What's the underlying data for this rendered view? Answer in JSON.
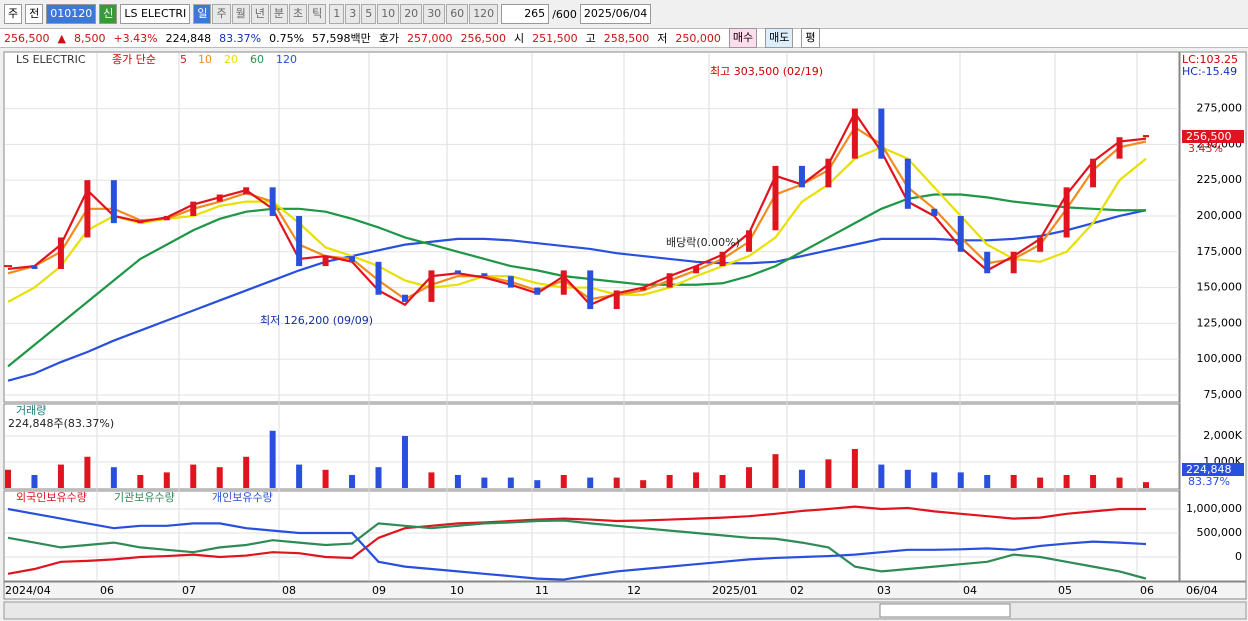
{
  "toolbar": {
    "period": "주",
    "prev": "전",
    "code": "010120",
    "new": "신",
    "name": "LS ELECTRI",
    "intervals": [
      "일",
      "주",
      "월",
      "년",
      "분",
      "초",
      "틱"
    ],
    "counts": [
      "1",
      "3",
      "5",
      "10",
      "20",
      "30",
      "60",
      "120"
    ],
    "count": "265",
    "max": "/600",
    "date": "2025/06/04"
  },
  "quote": {
    "price": "256,500",
    "arrow": "▲",
    "change": "8,500",
    "rate": "+3.43%",
    "volume": "224,848",
    "vol_ratio": "83.37%",
    "turnover": "0.75%",
    "amount": "57,598백만",
    "ask_label": "호가",
    "ask": "257,000",
    "bid": "256,500",
    "open_label": "시",
    "open": "251,500",
    "high_label": "고",
    "high": "258,500",
    "low_label": "저",
    "low": "250,000",
    "buy": "매수",
    "sell": "매도",
    "avg": "평"
  },
  "chart_data": [
    {
      "type": "candlestick",
      "title": "LS ELECTRIC",
      "legend_prefix": "종가 단순",
      "close": [
        165000,
        163000,
        185000,
        225000,
        195000,
        197000,
        200000,
        210000,
        215000,
        220000,
        200000,
        165000,
        172000,
        168000,
        145000,
        140000,
        162000,
        160000,
        158000,
        150000,
        145000,
        162000,
        135000,
        148000,
        150000,
        160000,
        165000,
        175000,
        190000,
        235000,
        220000,
        240000,
        275000,
        240000,
        205000,
        200000,
        175000,
        160000,
        175000,
        185000,
        220000,
        240000,
        255000,
        256500
      ],
      "up_color": "#e0141e",
      "down_color": "#2850dc",
      "series": [
        {
          "name": "5",
          "color": "#e0141e",
          "values": [
            163000,
            165000,
            180000,
            218000,
            200000,
            196000,
            199000,
            208000,
            213000,
            218000,
            205000,
            170000,
            172000,
            168000,
            148000,
            138000,
            158000,
            160000,
            157000,
            152000,
            146000,
            158000,
            138000,
            146000,
            150000,
            158000,
            165000,
            173000,
            188000,
            228000,
            222000,
            236000,
            272000,
            245000,
            210000,
            200000,
            178000,
            162000,
            172000,
            184000,
            215000,
            238000,
            252000,
            254000
          ]
        },
        {
          "name": "10",
          "color": "#f08c1e",
          "values": [
            160000,
            165000,
            175000,
            205000,
            205000,
            197000,
            198000,
            205000,
            210000,
            216000,
            210000,
            180000,
            172000,
            170000,
            155000,
            142000,
            152000,
            158000,
            158000,
            154000,
            148000,
            155000,
            142000,
            145000,
            148000,
            155000,
            162000,
            170000,
            182000,
            215000,
            222000,
            232000,
            262000,
            250000,
            220000,
            205000,
            185000,
            167000,
            170000,
            180000,
            205000,
            232000,
            248000,
            252000
          ]
        },
        {
          "name": "20",
          "color": "#e8e000",
          "values": [
            140000,
            150000,
            165000,
            190000,
            200000,
            195000,
            198000,
            200000,
            207000,
            210000,
            210000,
            195000,
            178000,
            172000,
            165000,
            155000,
            150000,
            152000,
            158000,
            158000,
            153000,
            150000,
            150000,
            145000,
            145000,
            150000,
            158000,
            165000,
            172000,
            185000,
            210000,
            222000,
            240000,
            248000,
            240000,
            220000,
            200000,
            180000,
            170000,
            168000,
            175000,
            195000,
            225000,
            240000
          ]
        },
        {
          "name": "60",
          "color": "#1e9646",
          "values": [
            95000,
            110000,
            125000,
            140000,
            155000,
            170000,
            180000,
            190000,
            198000,
            203000,
            205000,
            205000,
            203000,
            198000,
            192000,
            185000,
            180000,
            175000,
            170000,
            165000,
            162000,
            158000,
            156000,
            154000,
            152000,
            152000,
            152000,
            153000,
            158000,
            165000,
            175000,
            185000,
            195000,
            205000,
            212000,
            215000,
            215000,
            213000,
            210000,
            208000,
            206000,
            205000,
            204000,
            204000
          ]
        },
        {
          "name": "120",
          "color": "#2850dc",
          "values": [
            85000,
            90000,
            98000,
            105000,
            113000,
            120000,
            127000,
            134000,
            141000,
            148000,
            155000,
            162000,
            168000,
            172000,
            176000,
            180000,
            182000,
            184000,
            184000,
            183000,
            181000,
            179000,
            177000,
            174000,
            172000,
            170000,
            168000,
            167000,
            167000,
            168000,
            172000,
            176000,
            180000,
            184000,
            184000,
            184000,
            183000,
            183000,
            184000,
            186000,
            190000,
            195000,
            200000,
            204000
          ]
        }
      ],
      "ylim": [
        70100,
        314500
      ],
      "yticks": [
        {
          "value": 275000,
          "label": "275,000"
        },
        {
          "value": 250000,
          "label": "250,000"
        },
        {
          "value": 225000,
          "label": "225,000"
        },
        {
          "value": 200000,
          "label": "200,000"
        },
        {
          "value": 175000,
          "label": "175,000"
        },
        {
          "value": 150000,
          "label": "150,000"
        },
        {
          "value": 125000,
          "label": "125,000"
        },
        {
          "value": 100000,
          "label": "100,000"
        },
        {
          "value": 75000,
          "label": "75,000"
        }
      ],
      "annotations": {
        "high": "최고 303,500 (02/19)",
        "low": "최저 126,200 (09/09)",
        "dividend": "배당락(0.00%)",
        "lc": "LC:103.25",
        "hc": "HC:-15.49",
        "last": "256,500",
        "last_rate": "3.43%"
      },
      "x_labels": [
        "2024/04",
        "06",
        "07",
        "08",
        "09",
        "10",
        "11",
        "12",
        "2025/01",
        "02",
        "03",
        "04",
        "05",
        "06",
        "06/04"
      ]
    },
    {
      "type": "bar",
      "title": "거래량",
      "subtitle": "224,848주(83.37%)",
      "values": [
        700000,
        500000,
        900000,
        1200000,
        800000,
        500000,
        600000,
        900000,
        800000,
        1200000,
        2200000,
        900000,
        700000,
        500000,
        800000,
        2000000,
        600000,
        500000,
        400000,
        400000,
        300000,
        500000,
        400000,
        400000,
        300000,
        500000,
        600000,
        500000,
        800000,
        1300000,
        700000,
        1100000,
        1500000,
        900000,
        700000,
        600000,
        600000,
        500000,
        500000,
        400000,
        500000,
        500000,
        400000,
        224848
      ],
      "ylim": [
        0,
        3190000
      ],
      "yticks": [
        {
          "value": 2000000,
          "label": "2,000K"
        },
        {
          "value": 1000000,
          "label": "1,000K"
        }
      ],
      "last_label": "224,848",
      "last_rate": "83.37%"
    },
    {
      "type": "line",
      "series": [
        {
          "name": "외국인보유수량",
          "color": "#e0141e",
          "values": [
            -350000,
            -250000,
            -100000,
            -80000,
            -50000,
            0,
            20000,
            50000,
            0,
            30000,
            100000,
            80000,
            0,
            -20000,
            400000,
            600000,
            650000,
            700000,
            720000,
            750000,
            780000,
            800000,
            780000,
            750000,
            760000,
            780000,
            800000,
            820000,
            850000,
            900000,
            960000,
            1000000,
            1050000,
            1000000,
            1020000,
            950000,
            900000,
            850000,
            800000,
            820000,
            900000,
            950000,
            1000000,
            1000000
          ]
        },
        {
          "name": "기관보유수량",
          "color": "#2e8b57",
          "values": [
            400000,
            300000,
            200000,
            250000,
            300000,
            200000,
            150000,
            100000,
            200000,
            250000,
            350000,
            300000,
            250000,
            280000,
            700000,
            650000,
            600000,
            650000,
            700000,
            720000,
            750000,
            760000,
            700000,
            650000,
            600000,
            550000,
            500000,
            450000,
            400000,
            380000,
            300000,
            200000,
            -200000,
            -300000,
            -250000,
            -200000,
            -150000,
            -100000,
            50000,
            0,
            -100000,
            -200000,
            -300000,
            -450000
          ]
        },
        {
          "name": "개인보유수량",
          "color": "#2850dc",
          "values": [
            1000000,
            900000,
            800000,
            700000,
            600000,
            650000,
            650000,
            700000,
            700000,
            600000,
            550000,
            500000,
            500000,
            500000,
            -100000,
            -200000,
            -250000,
            -300000,
            -350000,
            -400000,
            -450000,
            -470000,
            -380000,
            -300000,
            -250000,
            -200000,
            -150000,
            -100000,
            -50000,
            -20000,
            0,
            20000,
            50000,
            100000,
            150000,
            150000,
            160000,
            180000,
            150000,
            230000,
            280000,
            320000,
            300000,
            270000
          ]
        }
      ],
      "ylim": [
        -479000,
        1354000
      ],
      "yticks": [
        {
          "value": 1000000,
          "label": "1,000,000"
        },
        {
          "value": 500000,
          "label": "500,000"
        },
        0
      ]
    }
  ]
}
